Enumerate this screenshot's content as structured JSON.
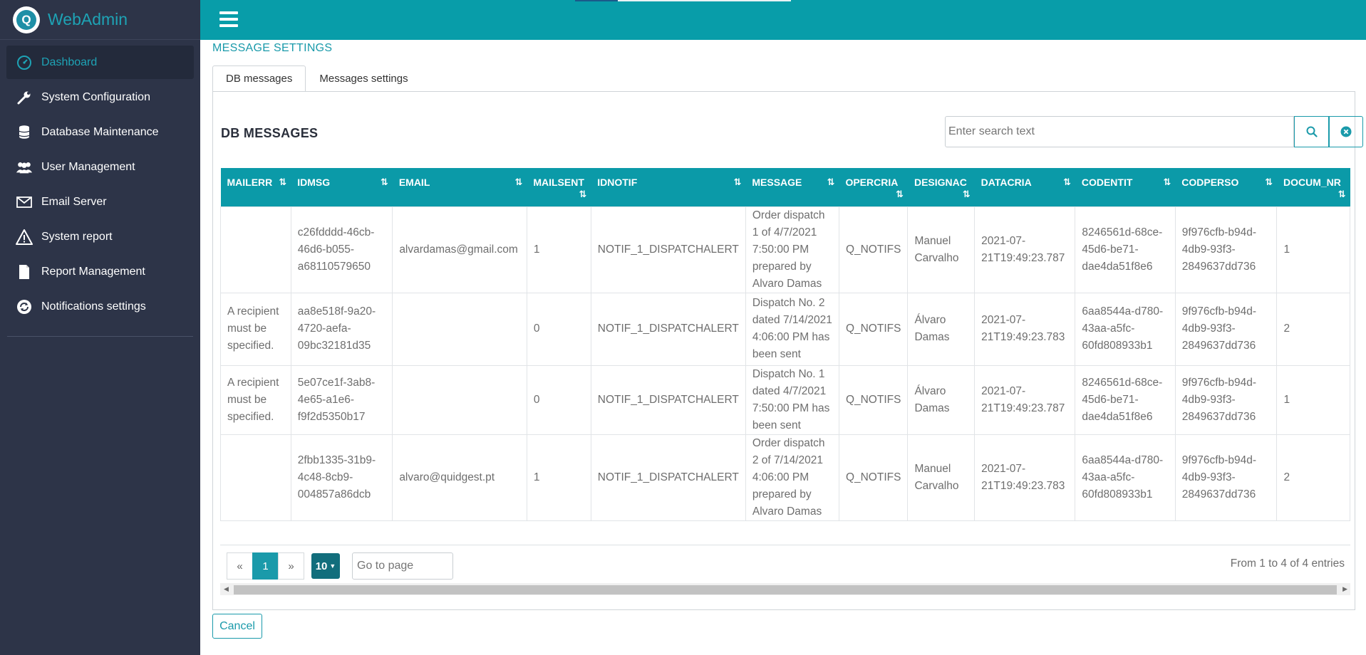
{
  "app": {
    "name": "WebAdmin",
    "logo_letter": "Q"
  },
  "sidebar": {
    "items": [
      {
        "label": "Dashboard",
        "icon": "dashboard-icon",
        "active": true
      },
      {
        "label": "System Configuration",
        "icon": "wrench-icon"
      },
      {
        "label": "Database Maintenance",
        "icon": "database-icon"
      },
      {
        "label": "User Management",
        "icon": "users-icon"
      },
      {
        "label": "Email Server",
        "icon": "envelope-icon"
      },
      {
        "label": "System report",
        "icon": "warning-icon"
      },
      {
        "label": "Report Management",
        "icon": "file-icon"
      },
      {
        "label": "Notifications settings",
        "icon": "notification-refresh-icon"
      }
    ]
  },
  "page": {
    "title": "MESSAGE SETTINGS",
    "tabs": [
      {
        "label": "DB messages",
        "active": true
      },
      {
        "label": "Messages settings"
      }
    ],
    "section_title": "DB MESSAGES"
  },
  "search": {
    "placeholder": "Enter search text",
    "value": ""
  },
  "table": {
    "columns": [
      "MAILERR",
      "IDMSG",
      "EMAIL",
      "MAILSENT",
      "IDNOTIF",
      "MESSAGE",
      "OPERCRIA",
      "DESIGNAC",
      "DATACRIA",
      "CODENTIT",
      "CODPERSO",
      "DOCUM_NR"
    ],
    "sort_icon": "⇅",
    "rows": [
      [
        "",
        "c26fdddd-46cb-46d6-b055-a68110579650",
        "alvardamas@gmail.com",
        "1",
        "NOTIF_1_DISPATCHALERT",
        "Order dispatch 1 of 4/7/2021 7:50:00 PM prepared by Alvaro Damas",
        "Q_NOTIFS",
        "Manuel Carvalho",
        "2021-07-21T19:49:23.787",
        "8246561d-68ce-45d6-be71-dae4da51f8e6",
        "9f976cfb-b94d-4db9-93f3-2849637dd736",
        "1"
      ],
      [
        "A recipient must be specified.",
        "aa8e518f-9a20-4720-aefa-09bc32181d35",
        "",
        "0",
        "NOTIF_1_DISPATCHALERT",
        "Dispatch No. 2 dated 7/14/2021 4:06:00 PM has been sent",
        "Q_NOTIFS",
        "Álvaro Damas",
        "2021-07-21T19:49:23.783",
        "6aa8544a-d780-43aa-a5fc-60fd808933b1",
        "9f976cfb-b94d-4db9-93f3-2849637dd736",
        "2"
      ],
      [
        "A recipient must be specified.",
        "5e07ce1f-3ab8-4e65-a1e6-f9f2d5350b17",
        "",
        "0",
        "NOTIF_1_DISPATCHALERT",
        "Dispatch No. 1 dated 4/7/2021 7:50:00 PM has been sent",
        "Q_NOTIFS",
        "Álvaro Damas",
        "2021-07-21T19:49:23.787",
        "8246561d-68ce-45d6-be71-dae4da51f8e6",
        "9f976cfb-b94d-4db9-93f3-2849637dd736",
        "1"
      ],
      [
        "",
        "2fbb1335-31b9-4c48-8cb9-004857a86dcb",
        "alvaro@quidgest.pt",
        "1",
        "NOTIF_1_DISPATCHALERT",
        "Order dispatch 2 of 7/14/2021 4:06:00 PM prepared by Alvaro Damas",
        "Q_NOTIFS",
        "Manuel Carvalho",
        "2021-07-21T19:49:23.783",
        "6aa8544a-d780-43aa-a5fc-60fd808933b1",
        "9f976cfb-b94d-4db9-93f3-2849637dd736",
        "2"
      ]
    ]
  },
  "pagination": {
    "prev": "«",
    "current": "1",
    "next": "»",
    "page_size": "10",
    "goto_placeholder": "Go to page",
    "summary": "From 1 to 4 of 4 entries"
  },
  "footer": {
    "cancel_label": "Cancel"
  },
  "colors": {
    "accent": "#089da9",
    "sidebar": "#2d3448",
    "brand": "#1ea3b5"
  }
}
